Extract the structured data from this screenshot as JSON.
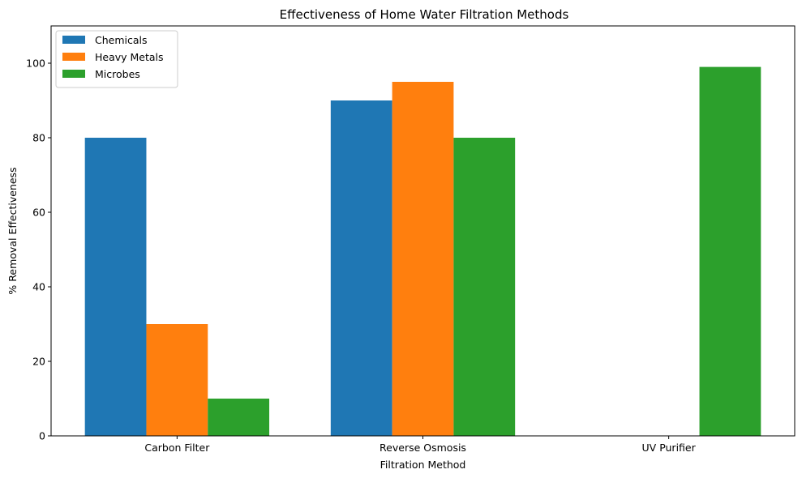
{
  "chart_data": {
    "type": "bar",
    "title": "Effectiveness of Home Water Filtration Methods",
    "xlabel": "Filtration Method",
    "ylabel": "% Removal Effectiveness",
    "categories": [
      "Carbon Filter",
      "Reverse Osmosis",
      "UV Purifier"
    ],
    "series": [
      {
        "name": "Chemicals",
        "color": "#1f77b4",
        "values": [
          80,
          90,
          0
        ]
      },
      {
        "name": "Heavy Metals",
        "color": "#ff7f0e",
        "values": [
          30,
          95,
          0
        ]
      },
      {
        "name": "Microbes",
        "color": "#2ca02c",
        "values": [
          10,
          80,
          99
        ]
      }
    ],
    "ylim": [
      0,
      110
    ],
    "yticks": [
      0,
      20,
      40,
      60,
      80,
      100
    ],
    "grid": false,
    "legend_position": "top-left"
  }
}
